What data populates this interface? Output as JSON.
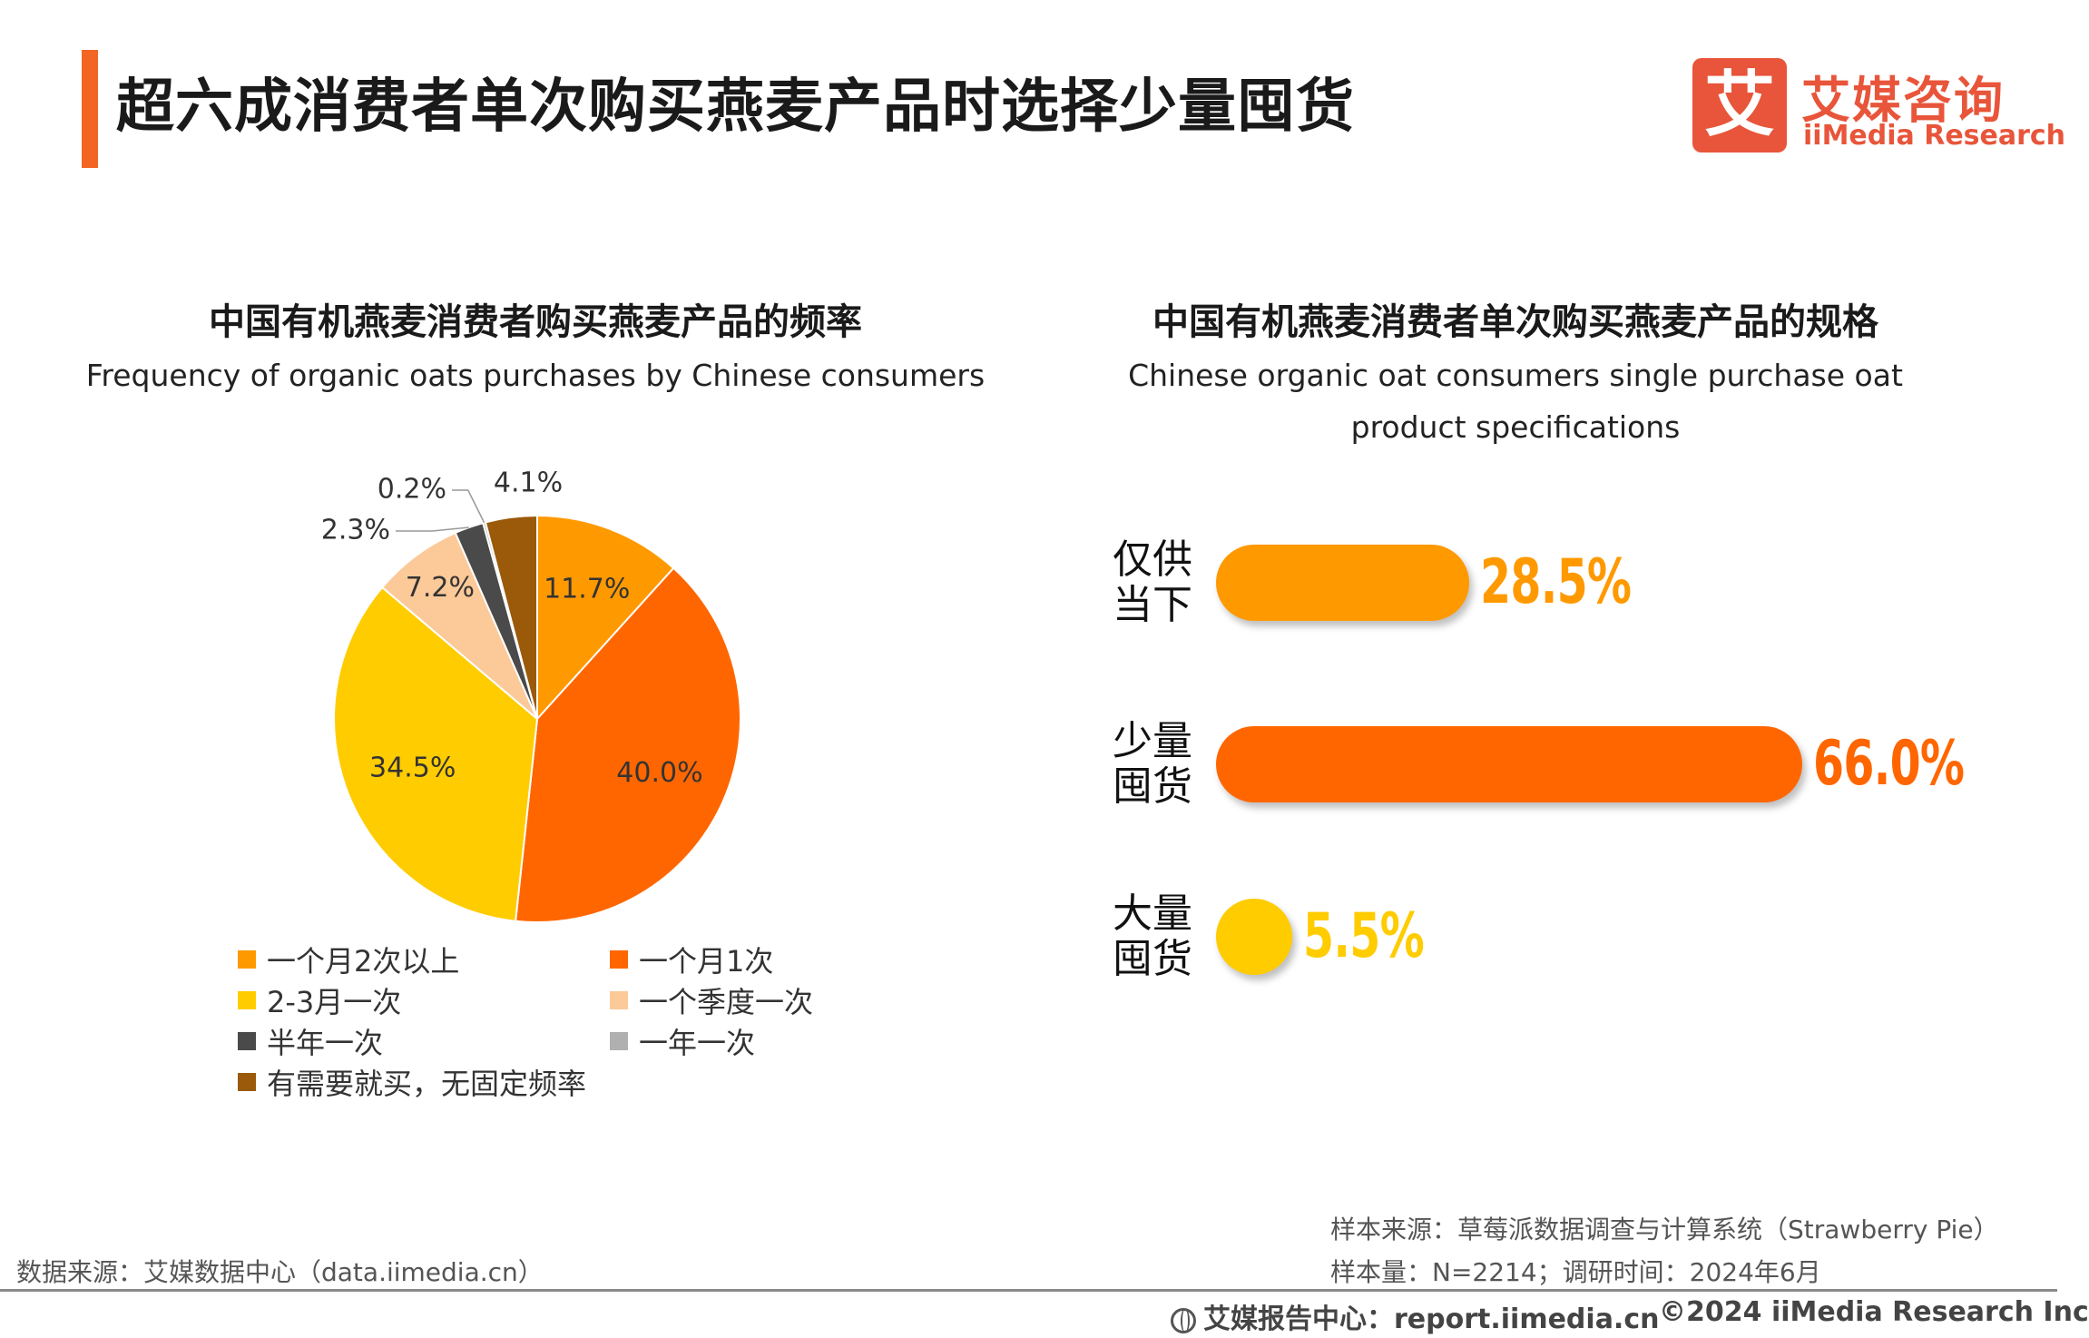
{
  "header": {
    "title": "超六成消费者单次购买燕麦产品时选择少量囤货",
    "accent_color": "#f26522"
  },
  "logo": {
    "mark": "艾",
    "name_cn": "艾媒咨询",
    "name_en": "iiMedia Research",
    "color": "#e8553a"
  },
  "chart_data": [
    {
      "type": "pie",
      "title": "中国有机燕麦消费者购买燕麦产品的频率",
      "subtitle": "Frequency of organic oats purchases by Chinese consumers",
      "unit": "%",
      "slices": [
        {
          "label": "一个月2次以上",
          "value": 11.7,
          "display": "11.7%",
          "color": "#ff9900"
        },
        {
          "label": "一个月1次",
          "value": 40.0,
          "display": "40.0%",
          "color": "#ff6600"
        },
        {
          "label": "2-3月一次",
          "value": 34.5,
          "display": "34.5%",
          "color": "#ffcc00"
        },
        {
          "label": "一个季度一次",
          "value": 7.2,
          "display": "7.2%",
          "color": "#fcc998"
        },
        {
          "label": "半年一次",
          "value": 2.3,
          "display": "2.3%",
          "color": "#4a4a4a"
        },
        {
          "label": "一年一次",
          "value": 0.2,
          "display": "0.2%",
          "color": "#b0b0b0"
        },
        {
          "label": "有需要就买，无固定频率",
          "value": 4.1,
          "display": "4.1%",
          "color": "#9a5a0a"
        }
      ],
      "legend_position": "bottom"
    },
    {
      "type": "bar",
      "orientation": "horizontal",
      "title": "中国有机燕麦消费者单次购买燕麦产品的规格",
      "subtitle": "Chinese organic oat consumers single purchase oat product specifications",
      "unit": "%",
      "categories": [
        "仅供当下",
        "少量囤货",
        "大量囤货"
      ],
      "values": [
        28.5,
        66.0,
        5.5
      ],
      "value_labels": [
        "28.5%",
        "66.0%",
        "5.5%"
      ],
      "colors": [
        "#ff9900",
        "#ff6600",
        "#ffcc00"
      ]
    }
  ],
  "footer": {
    "data_source": "数据来源：艾媒数据中心（data.iimedia.cn）",
    "sample_source": "样本来源：草莓派数据调查与计算系统（Strawberry Pie）",
    "sample_size": "样本量：N=2214；调研时间：2024年6月",
    "report_center": "艾媒报告中心：report.iimedia.cn",
    "copyright": "©2024  iiMedia Research Inc"
  }
}
